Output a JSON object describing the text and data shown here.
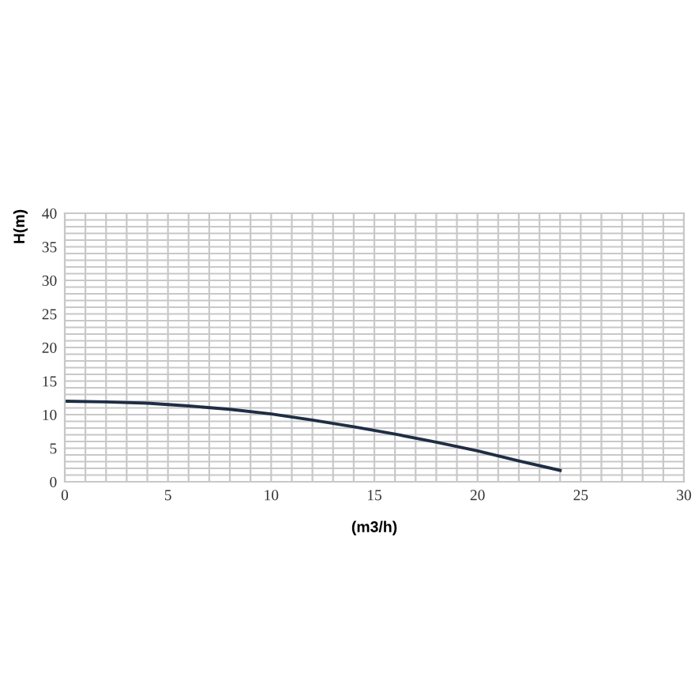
{
  "chart_data": {
    "type": "line",
    "xlabel": "(m3/h)",
    "ylabel": "H(m)",
    "x": [
      0,
      2,
      4,
      6,
      8,
      10,
      12,
      14,
      16,
      18,
      20,
      22,
      24
    ],
    "series": [
      {
        "color": "#1f2d45",
        "values": [
          12,
          11.9,
          11.7,
          11.3,
          10.8,
          10.1,
          9.2,
          8.2,
          7.1,
          5.9,
          4.6,
          3.1,
          1.7
        ]
      }
    ],
    "xlim": [
      0,
      30
    ],
    "ylim": [
      0,
      40
    ],
    "xticks": [
      0,
      {
        "value": 1,
        "label": null
      },
      {
        "value": 2,
        "label": null
      },
      {
        "value": 3,
        "label": null
      },
      {
        "value": 4,
        "label": null
      },
      5,
      {
        "value": 6,
        "label": null
      },
      {
        "value": 7,
        "label": null
      },
      {
        "value": 8,
        "label": null
      },
      {
        "value": 9,
        "label": null
      },
      10,
      {
        "value": 11,
        "label": null
      },
      {
        "value": 12,
        "label": null
      },
      {
        "value": 13,
        "label": null
      },
      {
        "value": 14,
        "label": null
      },
      15,
      {
        "value": 16,
        "label": null
      },
      {
        "value": 17,
        "label": null
      },
      {
        "value": 18,
        "label": null
      },
      {
        "value": 19,
        "label": null
      },
      20,
      {
        "value": 21,
        "label": null
      },
      {
        "value": 22,
        "label": null
      },
      {
        "value": 23,
        "label": null
      },
      {
        "value": 24,
        "label": null
      },
      25,
      {
        "value": 26,
        "label": null
      },
      {
        "value": 27,
        "label": null
      },
      {
        "value": 28,
        "label": null
      },
      {
        "value": 29,
        "label": null
      },
      30
    ],
    "yticks": [
      0,
      {
        "value": 1,
        "label": null
      },
      {
        "value": 2,
        "label": null
      },
      {
        "value": 3,
        "label": null
      },
      {
        "value": 4,
        "label": null
      },
      5,
      {
        "value": 6,
        "label": null
      },
      {
        "value": 7,
        "label": null
      },
      {
        "value": 8,
        "label": null
      },
      {
        "value": 9,
        "label": null
      },
      10,
      {
        "value": 11,
        "label": null
      },
      {
        "value": 12,
        "label": null
      },
      {
        "value": 13,
        "label": null
      },
      {
        "value": 14,
        "label": null
      },
      15,
      {
        "value": 16,
        "label": null
      },
      {
        "value": 17,
        "label": null
      },
      {
        "value": 18,
        "label": null
      },
      {
        "value": 19,
        "label": null
      },
      20,
      {
        "value": 21,
        "label": null
      },
      {
        "value": 22,
        "label": null
      },
      {
        "value": 23,
        "label": null
      },
      {
        "value": 24,
        "label": null
      },
      25,
      {
        "value": 26,
        "label": null
      },
      {
        "value": 27,
        "label": null
      },
      {
        "value": 28,
        "label": null
      },
      {
        "value": 29,
        "label": null
      },
      30,
      {
        "value": 31,
        "label": null
      },
      {
        "value": 32,
        "label": null
      },
      {
        "value": 33,
        "label": null
      },
      {
        "value": 34,
        "label": null
      },
      35,
      {
        "value": 36,
        "label": null
      },
      {
        "value": 37,
        "label": null
      },
      {
        "value": 38,
        "label": null
      },
      {
        "value": 39,
        "label": null
      },
      40
    ],
    "grid": true,
    "marker": "none",
    "line_style": "solid"
  }
}
